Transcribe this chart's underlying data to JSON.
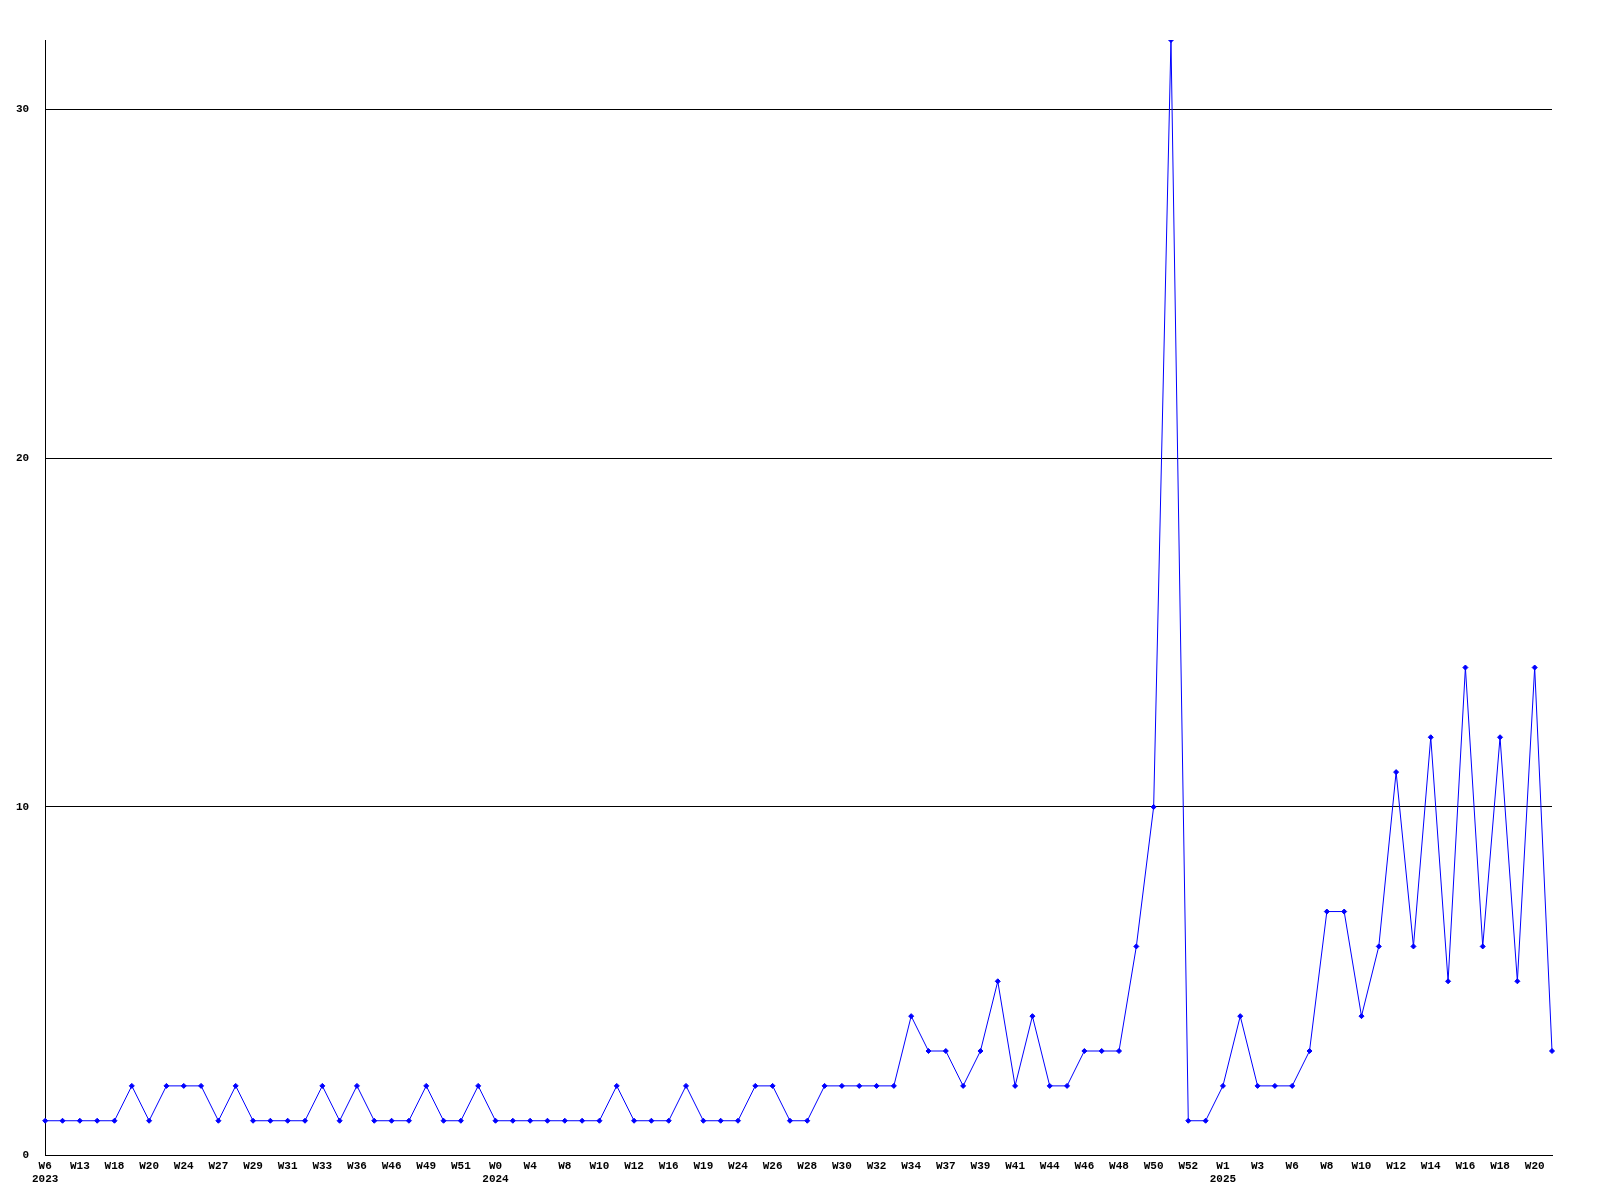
{
  "chart_data": {
    "type": "line",
    "categories": [
      "W6\n2023",
      null,
      "W13",
      null,
      "W18",
      null,
      "W20",
      null,
      "W24",
      null,
      "W27",
      null,
      "W29",
      null,
      "W31",
      null,
      "W33",
      null,
      "W36",
      null,
      "W46",
      null,
      "W49",
      null,
      "W51",
      null,
      "W0\n2024",
      null,
      "W4",
      null,
      "W8",
      null,
      "W10",
      null,
      "W12",
      null,
      "W16",
      null,
      "W19",
      null,
      "W24",
      null,
      "W26",
      null,
      "W28",
      null,
      "W30",
      null,
      "W32",
      null,
      "W34",
      null,
      "W37",
      null,
      "W39",
      null,
      "W41",
      null,
      "W44",
      null,
      "W46",
      null,
      "W48",
      null,
      "W50",
      null,
      "W52",
      null,
      "W1\n2025",
      null,
      "W3",
      null,
      "W6",
      null,
      "W8",
      null,
      "W10",
      null,
      "W12",
      null,
      "W14",
      null,
      "W16",
      null,
      "W18",
      null,
      "W20",
      null
    ],
    "series": [
      {
        "color": "#0000ff",
        "values": [
          1,
          1,
          1,
          1,
          1,
          2,
          1,
          2,
          2,
          2,
          1,
          2,
          1,
          1,
          1,
          1,
          2,
          1,
          2,
          1,
          1,
          1,
          2,
          1,
          1,
          2,
          1,
          1,
          1,
          1,
          1,
          1,
          1,
          2,
          1,
          1,
          1,
          2,
          1,
          1,
          1,
          2,
          2,
          1,
          1,
          2,
          2,
          2,
          2,
          2,
          4,
          3,
          3,
          2,
          3,
          5,
          2,
          4,
          2,
          2,
          3,
          3,
          3,
          6,
          10,
          32,
          1,
          1,
          2,
          4,
          2,
          2,
          2,
          3,
          7,
          7,
          4,
          6,
          11,
          6,
          12,
          5,
          14,
          6,
          12,
          5,
          14,
          3
        ]
      }
    ],
    "ylim": [
      0,
      32
    ],
    "yticks": [
      0,
      10,
      20,
      30
    ],
    "grid": "y",
    "marker": "diamond",
    "legend": false
  }
}
